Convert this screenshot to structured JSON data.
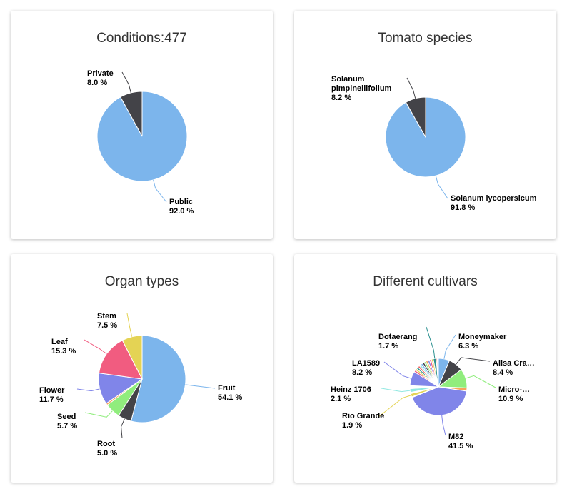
{
  "palette": [
    "#7cb5ec",
    "#434348",
    "#90ed7d",
    "#f7a35c",
    "#8085e9",
    "#f15c80",
    "#e4d354",
    "#2b908f",
    "#f45b5b",
    "#91e8e1"
  ],
  "chart_data": [
    {
      "type": "pie",
      "title": "Conditions:477",
      "slices": [
        {
          "name": "Public",
          "value": 92.0,
          "label": "92.0 %"
        },
        {
          "name": "Private",
          "value": 8.0,
          "label": "8.0 %"
        }
      ]
    },
    {
      "type": "pie",
      "title": "Tomato species",
      "slices": [
        {
          "name": "Solanum lycopersicum",
          "value": 91.8,
          "label": "91.8 %"
        },
        {
          "name": "Solanum pimpinellifolium",
          "value": 8.2,
          "label": "8.2 %"
        }
      ]
    },
    {
      "type": "pie",
      "title": "Organ types",
      "slices": [
        {
          "name": "Fruit",
          "value": 54.1,
          "label": "54.1 %"
        },
        {
          "name": "Root",
          "value": 5.0,
          "label": "5.0 %"
        },
        {
          "name": "Seed",
          "value": 5.7,
          "label": "5.7 %"
        },
        {
          "name": "",
          "value": 0.7
        },
        {
          "name": "Flower",
          "value": 11.7,
          "label": "11.7 %"
        },
        {
          "name": "Leaf",
          "value": 15.3,
          "label": "15.3 %"
        },
        {
          "name": "Stem",
          "value": 7.5,
          "label": "7.5 %"
        }
      ]
    },
    {
      "type": "pie",
      "title": "Different cultivars",
      "slices": [
        {
          "name": "Moneymaker",
          "value": 6.3,
          "label": "6.3 %"
        },
        {
          "name": "Ailsa Cra…",
          "value": 8.4,
          "label": "8.4 %"
        },
        {
          "name": "Micro-…",
          "value": 10.9,
          "label": "10.9 %"
        },
        {
          "name": "",
          "value": 1.8
        },
        {
          "name": "M82",
          "value": 41.5,
          "label": "41.5 %"
        },
        {
          "name": "",
          "value": 0.4
        },
        {
          "name": "Rio Grande",
          "value": 1.9,
          "label": "1.9 %"
        },
        {
          "name": "",
          "value": 0.3
        },
        {
          "name": "",
          "value": 0.4
        },
        {
          "name": "Heinz 1706",
          "value": 2.1,
          "label": "2.1 %"
        },
        {
          "name": "",
          "value": 0.7
        },
        {
          "name": "",
          "value": 0.3
        },
        {
          "name": "",
          "value": 0.3
        },
        {
          "name": "",
          "value": 0.4
        },
        {
          "name": "LA1589",
          "value": 8.2,
          "label": "8.2 %"
        },
        {
          "name": "",
          "value": 1.1
        },
        {
          "name": "",
          "value": 1.1
        },
        {
          "name": "",
          "value": 1.1
        },
        {
          "name": "",
          "value": 1.1
        },
        {
          "name": "",
          "value": 1.1
        },
        {
          "name": "",
          "value": 1.1
        },
        {
          "name": "",
          "value": 1.1
        },
        {
          "name": "",
          "value": 1.1
        },
        {
          "name": "",
          "value": 1.1
        },
        {
          "name": "",
          "value": 1.1
        },
        {
          "name": "",
          "value": 1.1
        },
        {
          "name": "",
          "value": 1.1
        },
        {
          "name": "Dotaerang",
          "value": 1.7,
          "label": "1.7 %"
        },
        {
          "name": "",
          "value": 0.6
        },
        {
          "name": "",
          "value": 0.6
        }
      ]
    }
  ]
}
